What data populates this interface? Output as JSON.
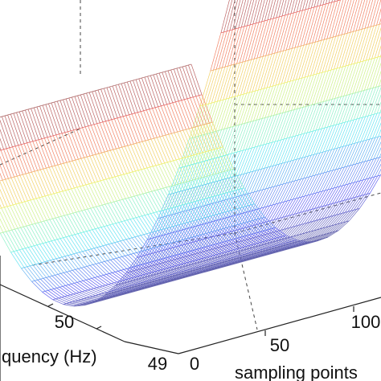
{
  "chart_data": {
    "type": "surface-3d-mesh",
    "title": "",
    "xlabel": "sampling points",
    "ylabel": "quency (Hz)",
    "zlabel": "",
    "x_ticks": [
      "0",
      "50",
      "100"
    ],
    "y_ticks": [
      "49",
      "50"
    ],
    "xlim": [
      0,
      110
    ],
    "ylim": [
      49,
      51
    ],
    "z_shape": "parabolic trough along frequency axis, minimum at 50 Hz, constant along sampling points",
    "colormap": "jet",
    "grid": true
  }
}
